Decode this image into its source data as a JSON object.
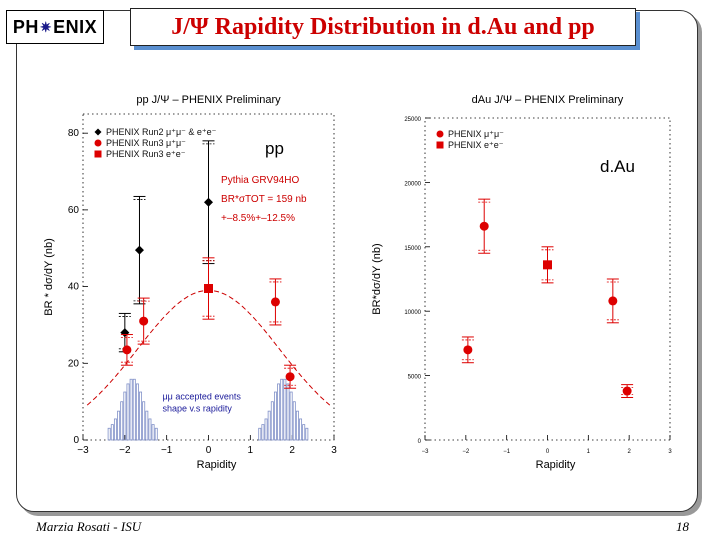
{
  "slide": {
    "logo_left": "PH",
    "logo_right": "ENIX",
    "title": "J/Ψ Rapidity Distribution in d.Au and pp",
    "footer_left": "Marzia Rosati - ISU",
    "page_number": "18"
  },
  "chart_data": [
    {
      "type": "scatter",
      "title": "pp J/Ψ – PHENIX Preliminary",
      "label": "pp",
      "xlabel": "Rapidity",
      "ylabel": "BR * dσ/dY (nb)",
      "xlim": [
        -3,
        3
      ],
      "ylim": [
        0,
        85
      ],
      "xticks": [
        -3,
        -2,
        -1,
        0,
        1,
        2,
        3
      ],
      "yticks": [
        0,
        20,
        40,
        60,
        80
      ],
      "grid": false,
      "legend_position": "top-left",
      "series": [
        {
          "name": "PHENIX Run2 μ⁺μ⁻ & e⁺e⁻",
          "marker": "diamond",
          "color": "#000000",
          "x": [
            -2.0,
            -1.65,
            0.0
          ],
          "y": [
            28,
            49.5,
            62
          ],
          "err": [
            5,
            14,
            16
          ]
        },
        {
          "name": "PHENIX Run3 μ⁺μ⁻",
          "marker": "circle",
          "color": "#dd0000",
          "x": [
            -1.95,
            -1.55,
            1.6,
            1.95
          ],
          "y": [
            23.5,
            31,
            36,
            16.5
          ],
          "err": [
            4,
            6,
            6,
            3
          ]
        },
        {
          "name": "PHENIX Run3 e⁺e⁻",
          "marker": "square",
          "color": "#dd0000",
          "x": [
            0.0
          ],
          "y": [
            39.5
          ],
          "err": [
            8
          ]
        }
      ],
      "model": {
        "name": "Pythia GRV94HO",
        "text_lines": [
          "Pythia GRV94HO",
          "BR*σTOT = 159 nb",
          "+–8.5%+–12.5%"
        ],
        "type": "gaussian",
        "amplitude": 39,
        "sigma": 1.7,
        "color": "#cc0000"
      },
      "histogram": {
        "label_lines": [
          "μμ accepted events",
          "shape v.s rapidity"
        ],
        "left_range": [
          -2.4,
          -1.2
        ],
        "right_range": [
          1.2,
          2.4
        ],
        "color": "#8090c8"
      }
    },
    {
      "type": "scatter",
      "title": "dAu J/Ψ – PHENIX Preliminary",
      "label": "d.Au",
      "xlabel": "Rapidity",
      "ylabel": "BR*dσ/dY (nb)",
      "xlim": [
        -3,
        3
      ],
      "ylim": [
        0,
        25000
      ],
      "xticks": [
        -3,
        -2,
        -1,
        0,
        1,
        2,
        3
      ],
      "yticks": [
        0,
        5000,
        10000,
        15000,
        20000,
        25000
      ],
      "grid": false,
      "legend_position": "top-left",
      "series": [
        {
          "name": "PHENIX μ⁺μ⁻",
          "marker": "circle",
          "color": "#dd0000",
          "x": [
            -1.95,
            -1.55,
            1.6,
            1.95
          ],
          "y": [
            7000,
            16600,
            10800,
            3800
          ],
          "err": [
            1000,
            2100,
            1700,
            500
          ]
        },
        {
          "name": "PHENIX e⁺e⁻",
          "marker": "square",
          "color": "#dd0000",
          "x": [
            0.0
          ],
          "y": [
            13600
          ],
          "err": [
            1400
          ]
        }
      ]
    }
  ]
}
